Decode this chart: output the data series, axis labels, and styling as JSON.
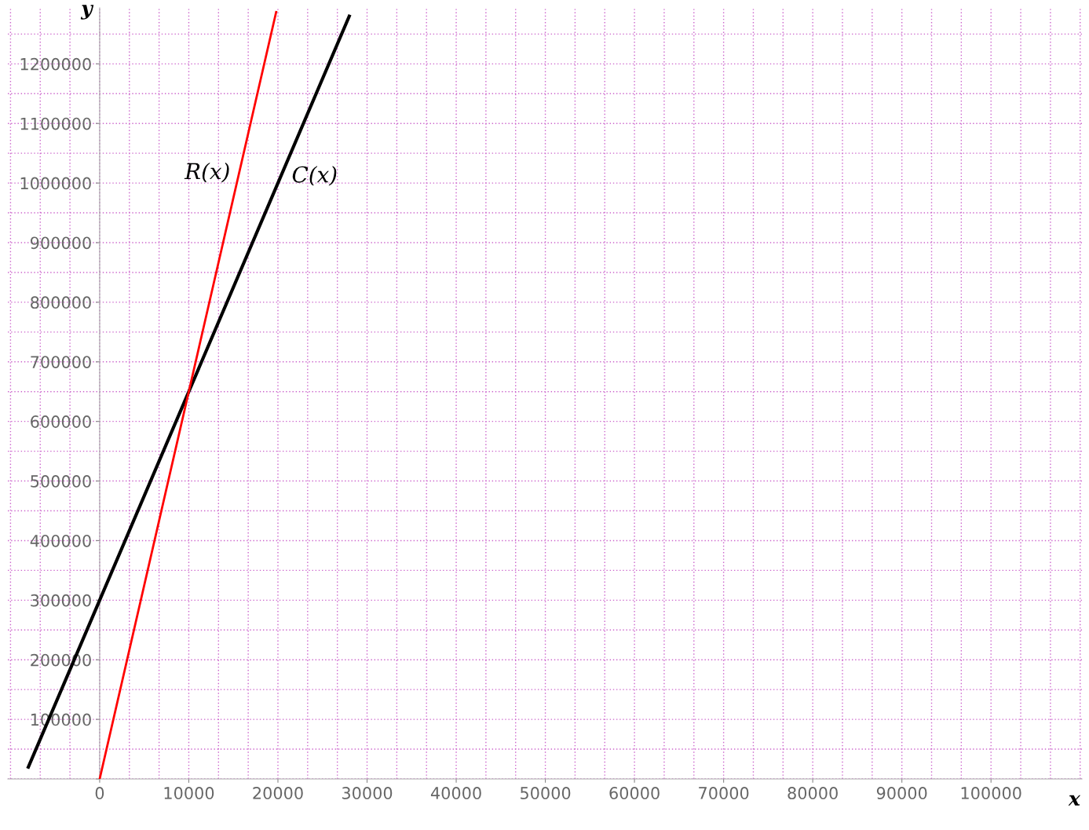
{
  "chart_data": {
    "type": "line",
    "xlabel": "x",
    "ylabel": "y",
    "series": [
      {
        "name": "C(x)",
        "color": "#000000",
        "x": [
          -8000,
          0,
          10000,
          28000
        ],
        "values": [
          20000,
          300000,
          650000,
          1280000
        ]
      },
      {
        "name": "R(x)",
        "color": "#ff0000",
        "x": [
          0,
          10000,
          19800
        ],
        "values": [
          0,
          650000,
          1287000
        ]
      }
    ],
    "xlim": [
      -10300,
      110200
    ],
    "ylim": [
      0,
      1294000
    ],
    "xticks": [
      0,
      10000,
      20000,
      30000,
      40000,
      50000,
      60000,
      70000,
      80000,
      90000,
      100000
    ],
    "yticks": [
      {
        "value": 0,
        "label": null
      },
      100000,
      200000,
      300000,
      400000,
      500000,
      600000,
      700000,
      800000,
      900000,
      1000000,
      1100000,
      1200000
    ],
    "grid": true,
    "legend": false,
    "marker": "none",
    "line_style": "solid"
  }
}
